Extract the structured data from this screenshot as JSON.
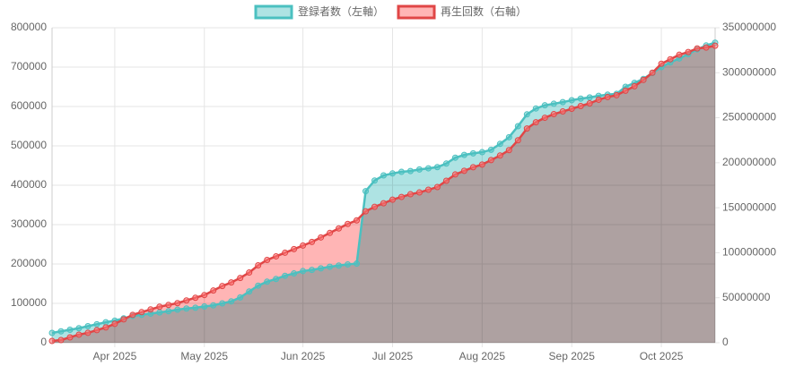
{
  "chart_data": {
    "type": "line",
    "categories": [
      null,
      null,
      null,
      null,
      null,
      null,
      null,
      "Apr 2025",
      null,
      null,
      null,
      null,
      null,
      null,
      null,
      null,
      null,
      "May 2025",
      null,
      null,
      null,
      null,
      null,
      null,
      null,
      null,
      null,
      null,
      "Jun 2025",
      null,
      null,
      null,
      null,
      null,
      null,
      null,
      null,
      null,
      "Jul 2025",
      null,
      null,
      null,
      null,
      null,
      null,
      null,
      null,
      null,
      "Aug 2025",
      null,
      null,
      null,
      null,
      null,
      null,
      null,
      null,
      null,
      "Sep 2025",
      null,
      null,
      null,
      null,
      null,
      null,
      null,
      null,
      null,
      "Oct 2025",
      null,
      null,
      null,
      null,
      null,
      null
    ],
    "series": [
      {
        "name": "登録者数（左軸）",
        "color": "#4bc0c0",
        "fill": "rgba(75,192,192,0.45)",
        "axis": "y",
        "values": [
          25000,
          29000,
          33000,
          37000,
          42000,
          47000,
          52000,
          56000,
          62000,
          68000,
          71000,
          74000,
          77000,
          80000,
          84000,
          87000,
          89000,
          92000,
          95000,
          100000,
          105000,
          115000,
          130000,
          145000,
          155000,
          162000,
          170000,
          176000,
          182000,
          185000,
          189000,
          193000,
          196000,
          199000,
          201000,
          385000,
          412000,
          425000,
          430000,
          434000,
          436000,
          440000,
          443000,
          446000,
          455000,
          470000,
          477000,
          481000,
          484000,
          490000,
          505000,
          522000,
          550000,
          580000,
          595000,
          603000,
          607000,
          611000,
          616000,
          620000,
          623000,
          627000,
          630000,
          632000,
          650000,
          660000,
          670000,
          685000,
          700000,
          712000,
          722000,
          733000,
          745000,
          755000,
          762000
        ]
      },
      {
        "name": "再生回数（右軸）",
        "color": "#e04646",
        "fill": "rgba(255,120,120,0.55)",
        "axis": "y2",
        "values": [
          2000000,
          3000000,
          6000000,
          9000000,
          11000000,
          14000000,
          17000000,
          21000000,
          26000000,
          31000000,
          34000000,
          37000000,
          40000000,
          42000000,
          44000000,
          47000000,
          50000000,
          53000000,
          58000000,
          63000000,
          67000000,
          72000000,
          78000000,
          86000000,
          92000000,
          96000000,
          100000000,
          104000000,
          108000000,
          112000000,
          117000000,
          122000000,
          127000000,
          132000000,
          136000000,
          146000000,
          151000000,
          155000000,
          159000000,
          162000000,
          165000000,
          167000000,
          170000000,
          173000000,
          180000000,
          187000000,
          191000000,
          195000000,
          198000000,
          203000000,
          208000000,
          214000000,
          225000000,
          238000000,
          245000000,
          250000000,
          254000000,
          257000000,
          260000000,
          263000000,
          266000000,
          270000000,
          273000000,
          275000000,
          280000000,
          285000000,
          292000000,
          300000000,
          310000000,
          315000000,
          320000000,
          323000000,
          327000000,
          328000000,
          330000000
        ]
      }
    ],
    "ylim": [
      0,
      800000
    ],
    "yticks": [
      0,
      100000,
      200000,
      300000,
      400000,
      500000,
      600000,
      700000,
      800000
    ],
    "y2lim": [
      0,
      350000000
    ],
    "y2ticks": [
      0,
      50000000,
      100000000,
      150000000,
      200000000,
      250000000,
      300000000,
      350000000
    ],
    "grid": true,
    "legend": "top"
  }
}
